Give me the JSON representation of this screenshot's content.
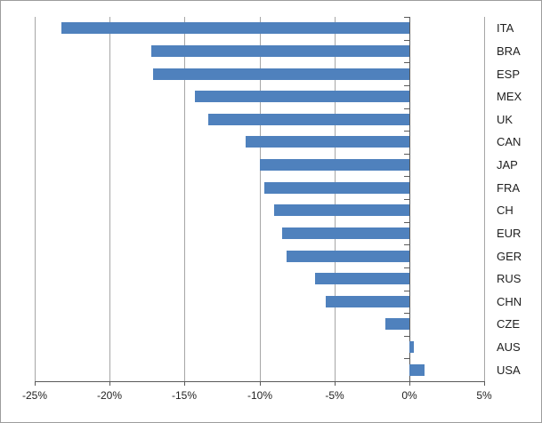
{
  "chart_data": {
    "type": "bar",
    "orientation": "horizontal",
    "title": "",
    "xlabel": "",
    "ylabel": "",
    "categories": [
      "ITA",
      "BRA",
      "ESP",
      "MEX",
      "UK",
      "CAN",
      "JAP",
      "FRA",
      "CH",
      "EUR",
      "GER",
      "RUS",
      "CHN",
      "CZE",
      "AUS",
      "USA"
    ],
    "values": [
      -23.2,
      -17.2,
      -17.1,
      -14.3,
      -13.4,
      -10.9,
      -10.0,
      -9.7,
      -9.0,
      -8.5,
      -8.2,
      -6.3,
      -5.6,
      -1.6,
      0.3,
      1.0
    ],
    "value_unit": "%",
    "xlim": [
      -25,
      5
    ],
    "x_ticks": [
      -25,
      -20,
      -15,
      -10,
      -5,
      0,
      5
    ],
    "x_tick_labels": [
      "-25%",
      "-20%",
      "-15%",
      "-10%",
      "-5%",
      "0%",
      "5%"
    ],
    "grid": true,
    "legend": "none",
    "category_label_position": "right",
    "colors": {
      "bar": "#4F81BD",
      "gridline": "#a6a6a6",
      "axis": "#595959",
      "text": "#1f1f1f",
      "frame_border": "#9d9d9d",
      "background": "#ffffff"
    }
  }
}
